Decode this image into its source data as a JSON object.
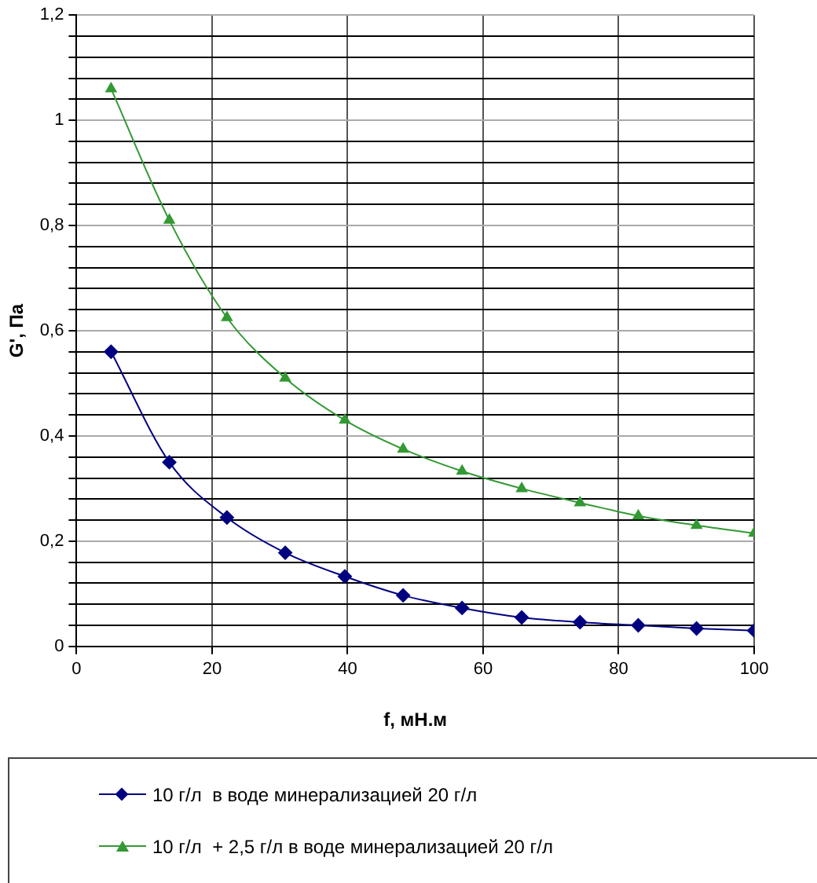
{
  "chart_data": {
    "type": "line",
    "xlabel": "f, мН.м",
    "ylabel": "G', Па",
    "xlim": [
      0,
      100
    ],
    "xticks": [
      0,
      20,
      40,
      60,
      80,
      100
    ],
    "ylim": [
      0,
      1.2
    ],
    "yticks": [
      0,
      {
        "value": 0.04,
        "label": null
      },
      {
        "value": 0.08,
        "label": null
      },
      {
        "value": 0.12,
        "label": null
      },
      {
        "value": 0.16,
        "label": null
      },
      {
        "value": 0.2,
        "label": "0,2"
      },
      {
        "value": 0.24,
        "label": null
      },
      {
        "value": 0.28,
        "label": null
      },
      {
        "value": 0.32,
        "label": null
      },
      {
        "value": 0.36,
        "label": null
      },
      {
        "value": 0.4,
        "label": "0,4"
      },
      {
        "value": 0.44,
        "label": null
      },
      {
        "value": 0.48,
        "label": null
      },
      {
        "value": 0.52,
        "label": null
      },
      {
        "value": 0.56,
        "label": null
      },
      {
        "value": 0.6,
        "label": "0,6"
      },
      {
        "value": 0.64,
        "label": null
      },
      {
        "value": 0.68,
        "label": null
      },
      {
        "value": 0.72,
        "label": null
      },
      {
        "value": 0.76,
        "label": null
      },
      {
        "value": 0.8,
        "label": "0,8"
      },
      {
        "value": 0.84,
        "label": null
      },
      {
        "value": 0.88,
        "label": null
      },
      {
        "value": 0.92,
        "label": null
      },
      {
        "value": 0.96,
        "label": null
      },
      1,
      {
        "value": 1.04,
        "label": null
      },
      {
        "value": 1.08,
        "label": null
      },
      {
        "value": 1.12,
        "label": null
      },
      {
        "value": 1.16,
        "label": null
      },
      {
        "value": 1.2,
        "label": "1,2"
      }
    ],
    "x": [
      5.1,
      13.7,
      22.2,
      30.8,
      39.6,
      48.2,
      56.9,
      65.7,
      74.3,
      82.9,
      91.5,
      100
    ],
    "series": [
      {
        "name": "10 г/л  в воде минерализацией 20 г/л",
        "color": "#000080",
        "marker": "diamond",
        "values": [
          0.56,
          0.35,
          0.245,
          0.178,
          0.133,
          0.097,
          0.073,
          0.055,
          0.046,
          0.04,
          0.034,
          0.03
        ]
      },
      {
        "name": "10 г/л  + 2,5 г/л в воде минерализацией 20 г/л",
        "color": "#339933",
        "marker": "triangle",
        "values": [
          1.06,
          0.81,
          0.625,
          0.51,
          0.43,
          0.375,
          0.333,
          0.3,
          0.273,
          0.248,
          0.23,
          0.215
        ]
      }
    ],
    "grid": true,
    "legend": "bottom"
  }
}
